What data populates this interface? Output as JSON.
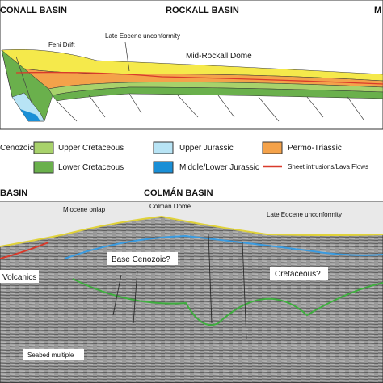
{
  "top_section": {
    "headers": [
      "CONALL BASIN",
      "ROCKALL BASIN",
      "M"
    ],
    "labels": {
      "feni_drift": "Feni Drift",
      "late_eocene": "Late Eocene unconformity",
      "dome": "Mid-Rockall Dome"
    }
  },
  "legend": {
    "items": [
      "Cenozoic",
      "Upper Cretaceous",
      "Lower Cretaceous",
      "Upper Jurassic",
      "Middle/Lower Jurassic",
      "Permo-Triassic",
      "Sheet intrusions/Lava Flows"
    ]
  },
  "seismic_section": {
    "headers": [
      "BASIN",
      "COLMÁN BASIN"
    ],
    "labels": {
      "dome": "Colmán Dome",
      "miocene": "Miocene onlap",
      "late_eocene": "Late Eocene unconformity",
      "base_cenozoic": "Base Cenozoic?",
      "volcanics": "Volcanics",
      "cretaceous": "Cretaceous?",
      "multiple": "Seabed multiple"
    }
  }
}
